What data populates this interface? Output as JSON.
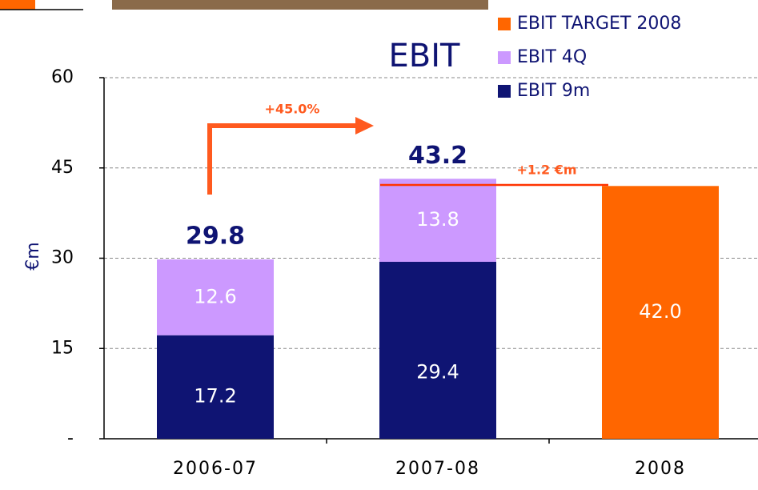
{
  "chart_data": {
    "type": "stacked_bar",
    "title": "EBIT",
    "ylabel": "€m",
    "categories": [
      "2006-07",
      "2007-08",
      "2008"
    ],
    "series": [
      {
        "name": "EBIT 9m",
        "color": "#0f1473",
        "values": [
          17.2,
          29.4,
          null
        ]
      },
      {
        "name": "EBIT 4Q",
        "color": "#cc99ff",
        "values": [
          12.6,
          13.8,
          null
        ]
      },
      {
        "name": "EBIT TARGET 2008",
        "color": "#ff6600",
        "values": [
          null,
          null,
          42.0
        ],
        "value_labels": [
          null,
          null,
          "42.0"
        ]
      }
    ],
    "totals": [
      29.8,
      43.2,
      null
    ],
    "annotations": [
      "+45.0%",
      "+1.2 €m"
    ],
    "ylim": [
      0,
      60
    ],
    "yticks": [
      {
        "value": 0,
        "label": "-"
      },
      15,
      30,
      45,
      60
    ],
    "grid": true,
    "legend": "upper right"
  }
}
